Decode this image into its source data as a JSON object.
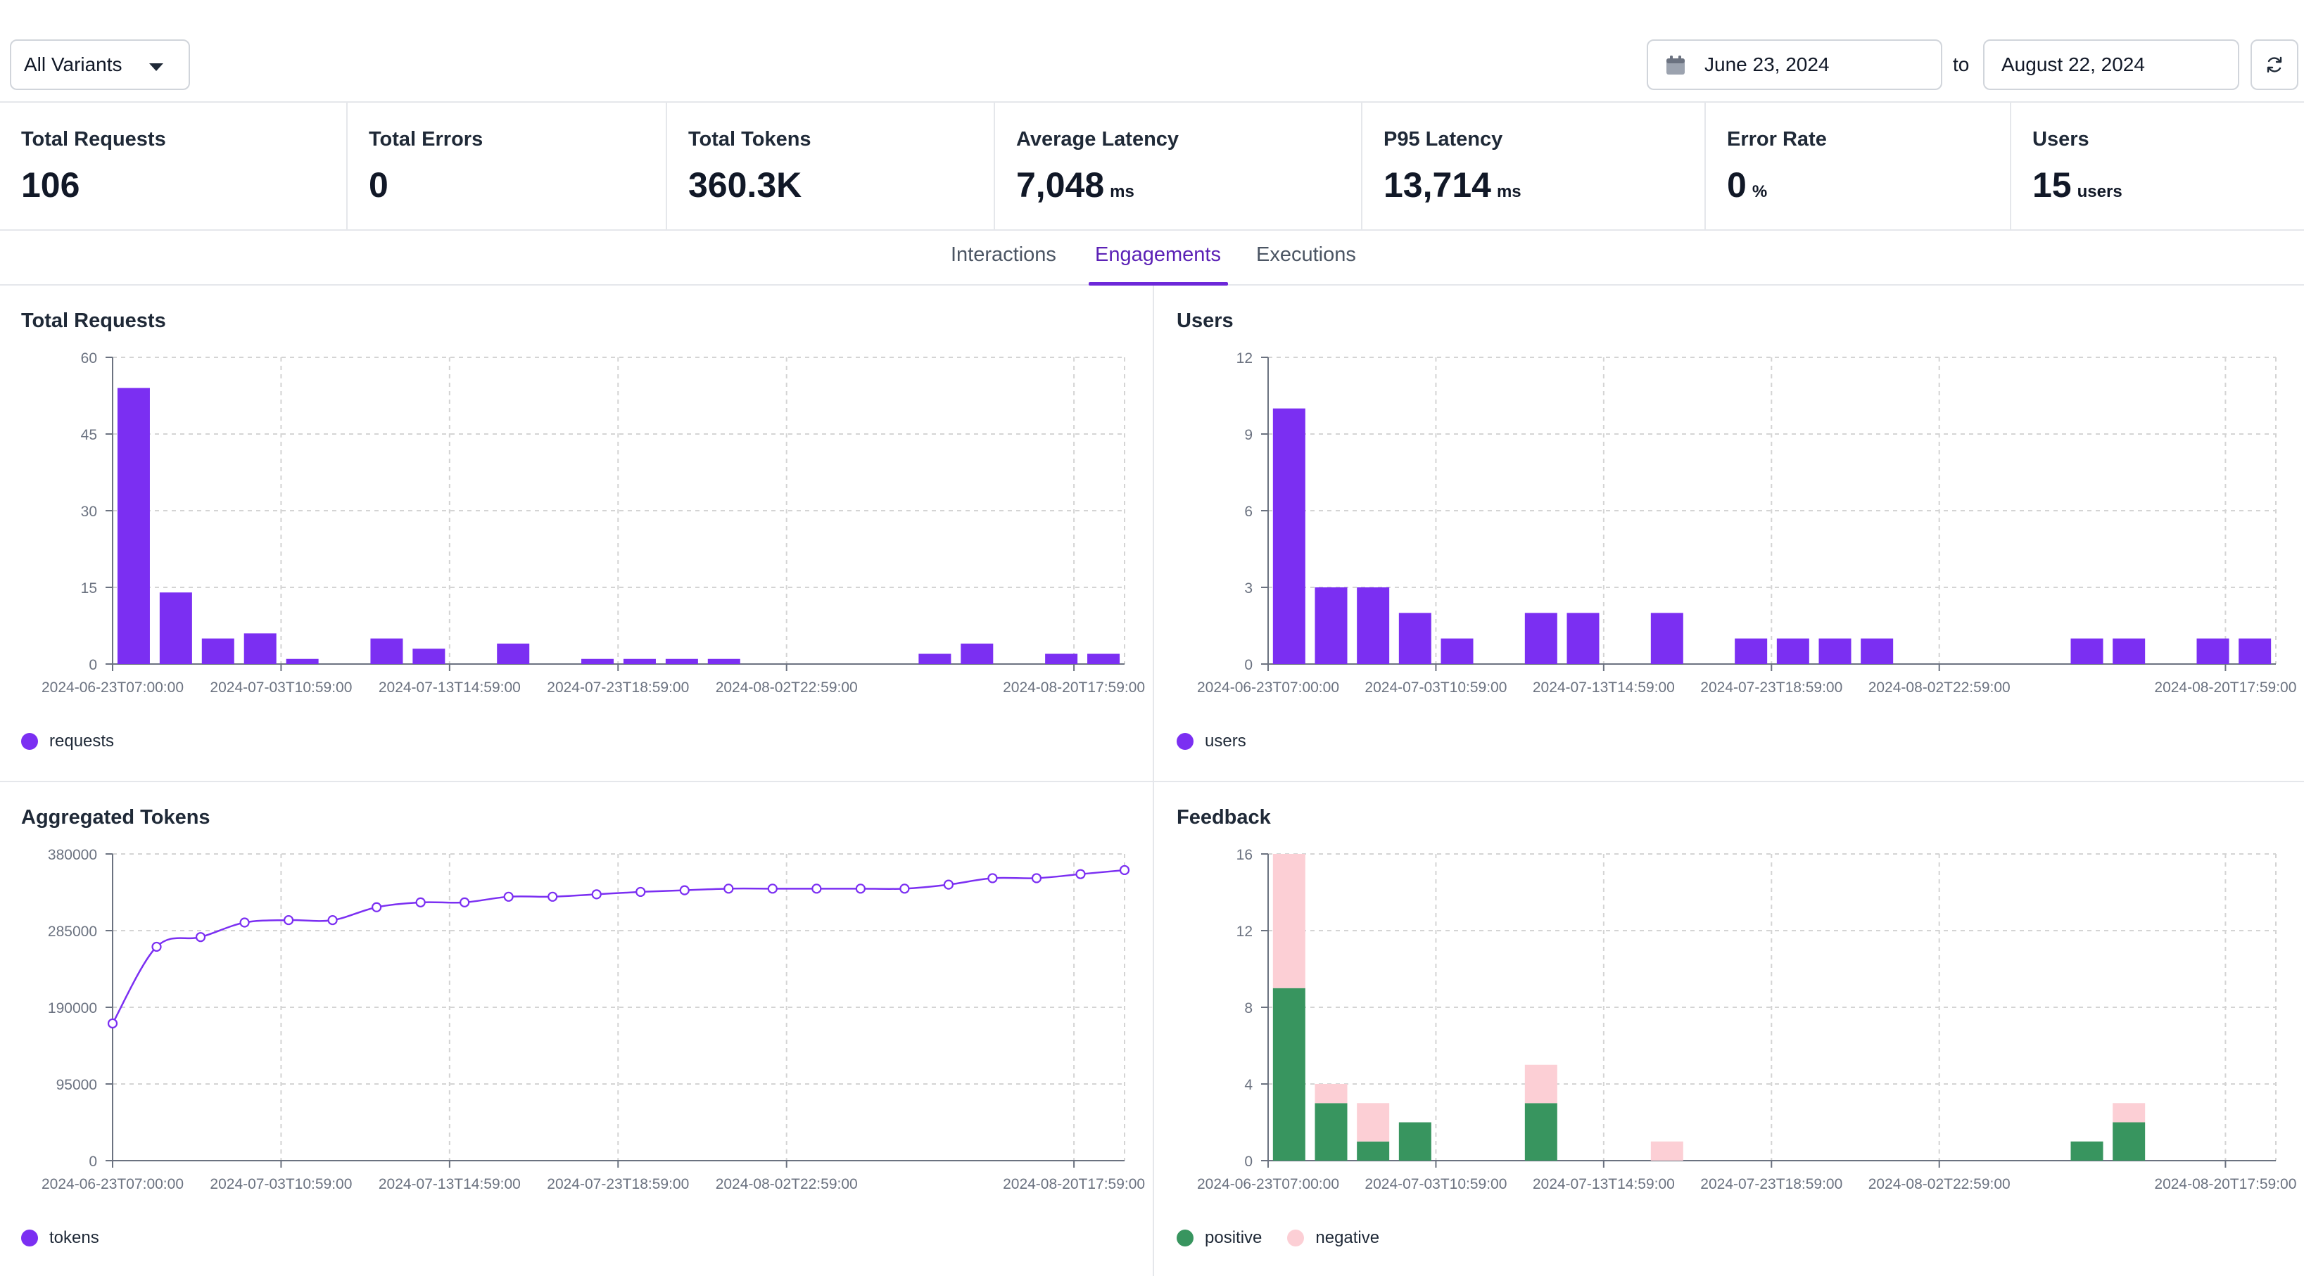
{
  "toolbar": {
    "variant_label": "All Variants",
    "date_from": "June 23, 2024",
    "to_label": "to",
    "date_to": "August 22, 2024",
    "icons": [
      "caret-down-icon",
      "calendar-icon",
      "refresh-icon"
    ]
  },
  "stats": [
    {
      "label": "Total Requests",
      "value": "106",
      "unit": ""
    },
    {
      "label": "Total Errors",
      "value": "0",
      "unit": ""
    },
    {
      "label": "Total Tokens",
      "value": "360.3K",
      "unit": ""
    },
    {
      "label": "Average Latency",
      "value": "7,048",
      "unit": "ms"
    },
    {
      "label": "P95 Latency",
      "value": "13,714",
      "unit": "ms"
    },
    {
      "label": "Error Rate",
      "value": "0",
      "unit": "%"
    },
    {
      "label": "Users",
      "value": "15",
      "unit": "users"
    }
  ],
  "tabs": [
    {
      "label": "Interactions",
      "active": false
    },
    {
      "label": "Engagements",
      "active": true
    },
    {
      "label": "Executions",
      "active": false
    }
  ],
  "colors": {
    "purple": "#7b2ff2",
    "positive": "#38955f",
    "negative": "#fccfd5",
    "grid": "#d4d4d4",
    "tick": "#6b7280"
  },
  "chart_data": [
    {
      "id": "total-requests",
      "type": "bar",
      "title": "Total Requests",
      "x_tick_labels": [
        "2024-06-23T07:00:00",
        "2024-07-03T10:59:00",
        "2024-07-13T14:59:00",
        "2024-07-23T18:59:00",
        "2024-08-02T22:59:00",
        "2024-08-20T17:59:00"
      ],
      "values": [
        54,
        14,
        5,
        6,
        1,
        0,
        5,
        3,
        0,
        4,
        0,
        1,
        1,
        1,
        1,
        0,
        0,
        0,
        0,
        2,
        4,
        0,
        2,
        2
      ],
      "ylim": [
        0,
        60
      ],
      "y_ticks": [
        0,
        15,
        30,
        45,
        60
      ],
      "legend": [
        {
          "name": "requests",
          "color": "#7b2ff2"
        }
      ]
    },
    {
      "id": "users",
      "type": "bar",
      "title": "Users",
      "x_tick_labels": [
        "2024-06-23T07:00:00",
        "2024-07-03T10:59:00",
        "2024-07-13T14:59:00",
        "2024-07-23T18:59:00",
        "2024-08-02T22:59:00",
        "2024-08-20T17:59:00"
      ],
      "values": [
        10,
        3,
        3,
        2,
        1,
        0,
        2,
        2,
        0,
        2,
        0,
        1,
        1,
        1,
        1,
        0,
        0,
        0,
        0,
        1,
        1,
        0,
        1,
        1
      ],
      "ylim": [
        0,
        12
      ],
      "y_ticks": [
        0,
        3,
        6,
        9,
        12
      ],
      "legend": [
        {
          "name": "users",
          "color": "#7b2ff2"
        }
      ]
    },
    {
      "id": "aggregated-tokens",
      "type": "line",
      "title": "Aggregated Tokens",
      "x_tick_labels": [
        "2024-06-23T07:00:00",
        "2024-07-03T10:59:00",
        "2024-07-13T14:59:00",
        "2024-07-23T18:59:00",
        "2024-08-02T22:59:00",
        "2024-08-20T17:59:00"
      ],
      "values": [
        170000,
        265000,
        277000,
        295000,
        298000,
        298000,
        314000,
        320000,
        320000,
        327000,
        327000,
        330000,
        333000,
        335000,
        337000,
        337000,
        337000,
        337000,
        337000,
        342000,
        350000,
        350000,
        355000,
        360000
      ],
      "ylim": [
        0,
        380000
      ],
      "y_ticks": [
        0,
        95000,
        190000,
        285000,
        380000
      ],
      "legend": [
        {
          "name": "tokens",
          "color": "#7b2ff2"
        }
      ]
    },
    {
      "id": "feedback",
      "type": "bar",
      "stacked": true,
      "title": "Feedback",
      "x_tick_labels": [
        "2024-06-23T07:00:00",
        "2024-07-03T10:59:00",
        "2024-07-13T14:59:00",
        "2024-07-23T18:59:00",
        "2024-08-02T22:59:00",
        "2024-08-20T17:59:00"
      ],
      "series": [
        {
          "name": "positive",
          "color": "#38955f",
          "values": [
            9,
            3,
            1,
            2,
            0,
            0,
            3,
            0,
            0,
            0,
            0,
            0,
            0,
            0,
            0,
            0,
            0,
            0,
            0,
            1,
            2,
            0,
            0,
            0
          ]
        },
        {
          "name": "negative",
          "color": "#fccfd5",
          "values": [
            7,
            1,
            2,
            0,
            0,
            0,
            2,
            0,
            0,
            1,
            0,
            0,
            0,
            0,
            0,
            0,
            0,
            0,
            0,
            0,
            1,
            0,
            0,
            0
          ]
        }
      ],
      "ylim": [
        0,
        16
      ],
      "y_ticks": [
        0,
        4,
        8,
        12,
        16
      ],
      "legend": [
        {
          "name": "positive",
          "color": "#38955f"
        },
        {
          "name": "negative",
          "color": "#fccfd5"
        }
      ]
    }
  ]
}
